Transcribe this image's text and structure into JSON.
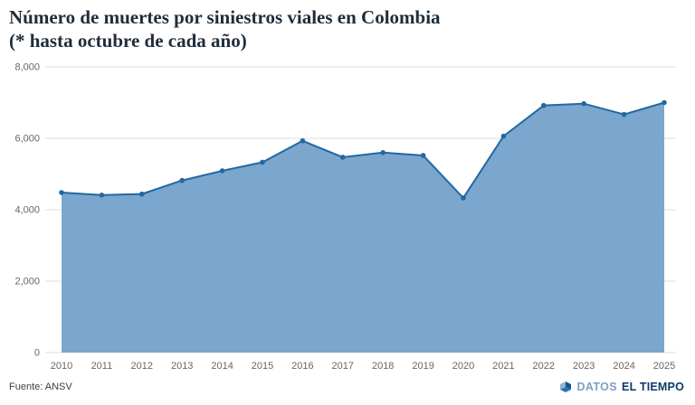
{
  "title": {
    "line1": "Número de muertes por siniestros viales en Colombia",
    "line2": "(* hasta octubre de cada año)"
  },
  "chart_data": {
    "type": "area",
    "title": "Número de muertes por siniestros viales en Colombia (* hasta octubre de cada año)",
    "x": [
      2010,
      2011,
      2012,
      2013,
      2014,
      2015,
      2016,
      2017,
      2018,
      2019,
      2020,
      2021,
      2022,
      2023,
      2024,
      2025
    ],
    "values": [
      4480,
      4410,
      4440,
      4820,
      5090,
      5330,
      5930,
      5470,
      5600,
      5520,
      4330,
      6060,
      6920,
      6970,
      6670,
      7000
    ],
    "xlabel": "",
    "ylabel": "",
    "ylim": [
      0,
      8000
    ],
    "yticks": [
      0,
      2000,
      4000,
      6000,
      8000
    ],
    "grid": true,
    "legend": "none",
    "markers": true,
    "colors": {
      "area_fill": "#7ba6cd",
      "line": "#2268a2",
      "point": "#2268a2",
      "grid": "#dcdcdc",
      "axis_text": "#666666"
    }
  },
  "footer": {
    "source": "Fuente: ANSV",
    "brand": {
      "datos": "DATOS",
      "el_tiempo": "EL TIEMPO"
    }
  }
}
